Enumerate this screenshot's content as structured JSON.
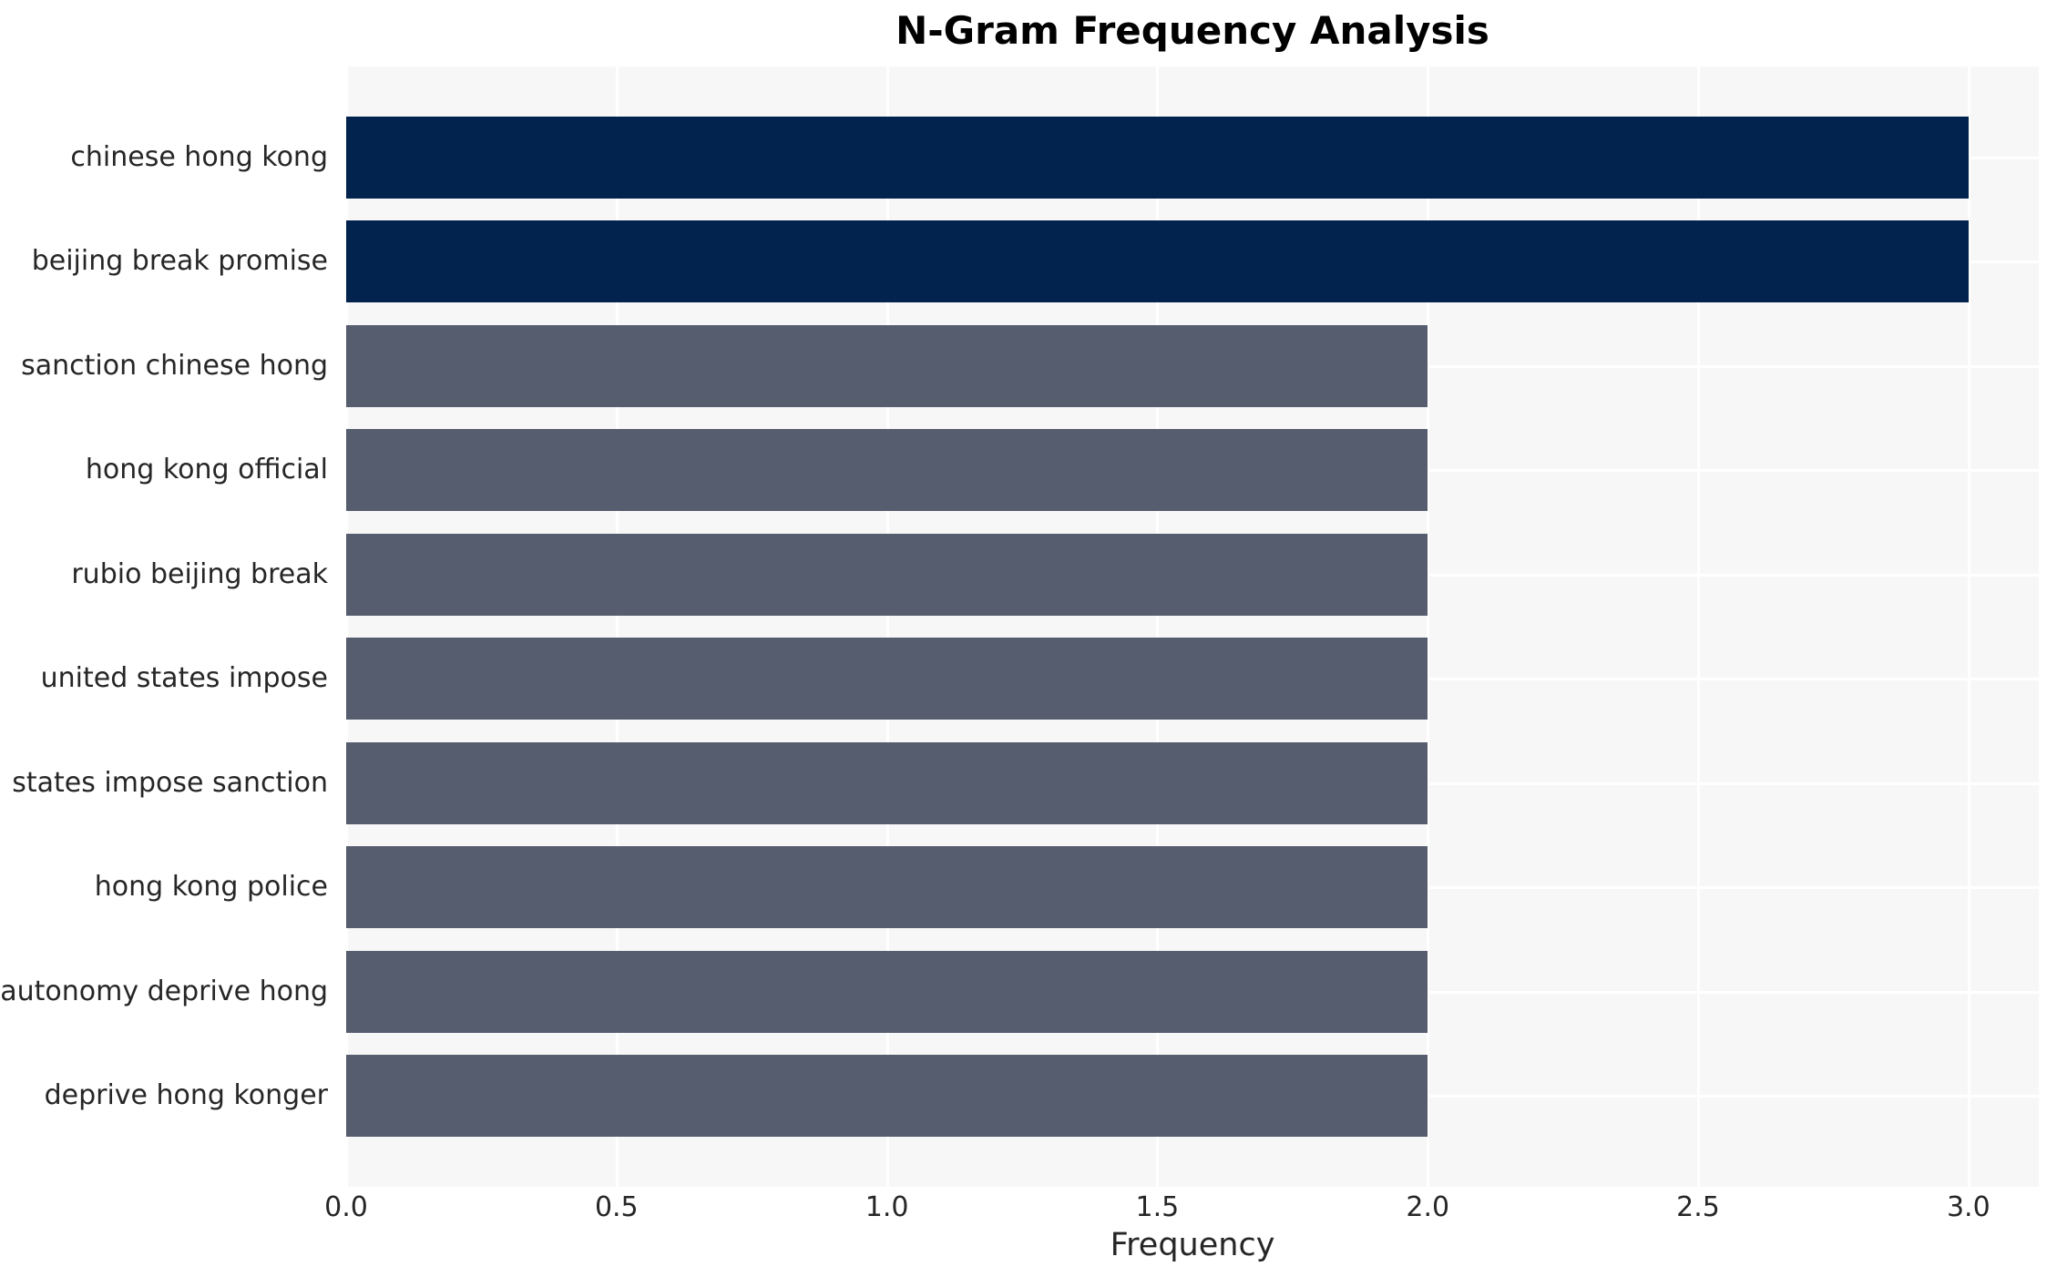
{
  "chart_data": {
    "type": "bar",
    "orientation": "horizontal",
    "title": "N-Gram Frequency Analysis",
    "xlabel": "Frequency",
    "ylabel": "",
    "categories": [
      "chinese hong kong",
      "beijing break promise",
      "sanction chinese hong",
      "hong kong official",
      "rubio beijing break",
      "united states impose",
      "states impose sanction",
      "hong kong police",
      "autonomy deprive hong",
      "deprive hong konger"
    ],
    "values": [
      3,
      3,
      2,
      2,
      2,
      2,
      2,
      2,
      2,
      2
    ],
    "bar_colors": [
      "#02234e",
      "#02234e",
      "#565d6e",
      "#565d6e",
      "#565d6e",
      "#565d6e",
      "#565d6e",
      "#565d6e",
      "#565d6e",
      "#565d6e"
    ],
    "xlim": [
      0,
      3.13
    ],
    "xticks": [
      0.0,
      0.5,
      1.0,
      1.5,
      2.0,
      2.5,
      3.0
    ],
    "xtick_labels": [
      "0.0",
      "0.5",
      "1.0",
      "1.5",
      "2.0",
      "2.5",
      "3.0"
    ],
    "grid": true,
    "legend": false,
    "colors": {
      "bar_high": "#02234e",
      "bar_low": "#565d6e",
      "plot_background": "#f7f7f8",
      "gridline": "#ffffff",
      "text": "#262626",
      "title_text": "#000000"
    }
  }
}
